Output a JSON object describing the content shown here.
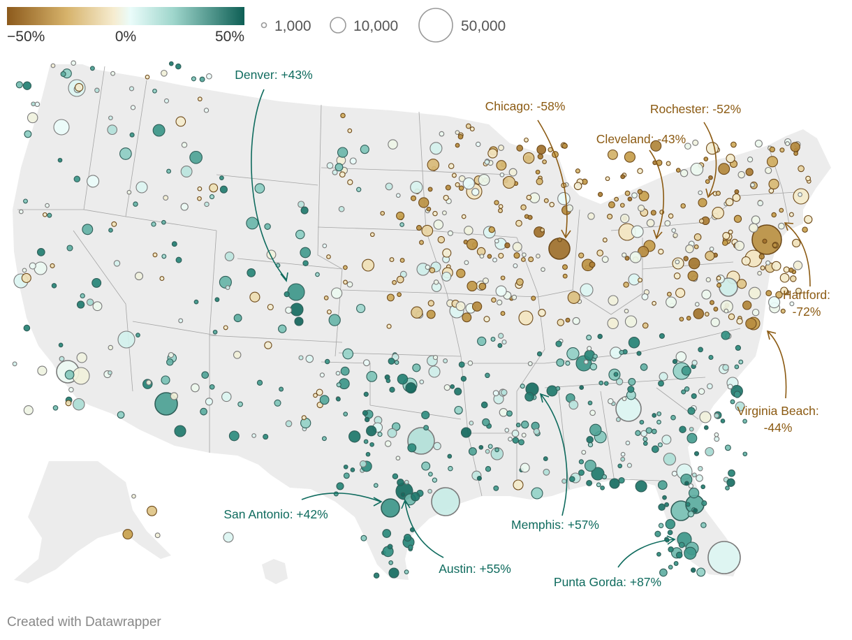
{
  "legend": {
    "color_labels": [
      "−50%",
      "0%",
      "50%"
    ],
    "size_labels": [
      "1,000",
      "10,000",
      "50,000"
    ],
    "color_scale": [
      "#8c5a1c",
      "#c9a24e",
      "#f5e9c6",
      "#eafcfa",
      "#8ccdc2",
      "#2a8a7c",
      "#0e5f55"
    ]
  },
  "annotations": {
    "denver": "Denver: +43%",
    "chicago": "Chicago: -58%",
    "rochester": "Rochester: -52%",
    "cleveland": "Cleveland: -43%",
    "hartford_line1": "Hartford:",
    "hartford_line2": "-72%",
    "virginia_line1": "Virginia Beach:",
    "virginia_line2": "-44%",
    "san_antonio": "San Antonio: +42%",
    "memphis": "Memphis: +57%",
    "austin": "Austin: +55%",
    "punta_gorda": "Punta Gorda: +87%"
  },
  "colors": {
    "brown_label": "#8b5a12",
    "teal_label": "#0f6b5e",
    "land": "#ececec",
    "border": "#999999"
  },
  "credit": "Created with Datawrapper"
}
